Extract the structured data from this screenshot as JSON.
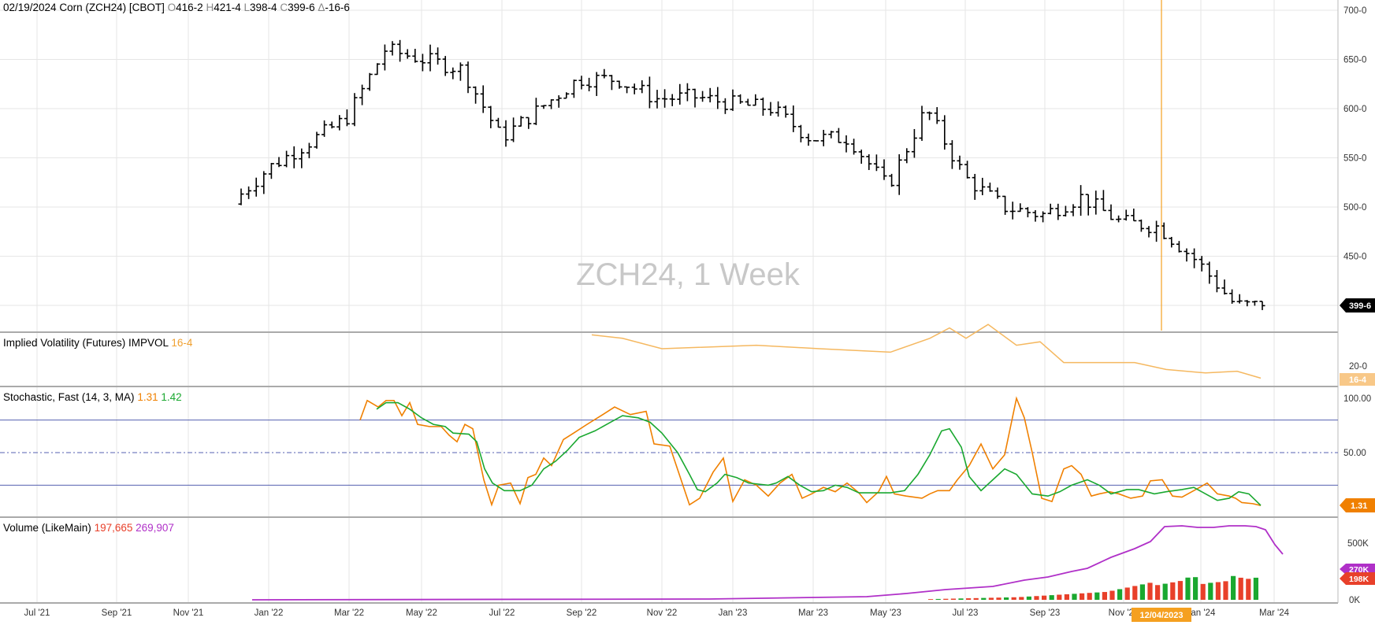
{
  "header": {
    "date": "02/19/2024",
    "symbol": "Corn (ZCH24) [CBOT]",
    "open_label": "O",
    "open": "416-2",
    "high_label": "H",
    "high": "421-4",
    "low_label": "L",
    "low": "398-4",
    "close_label": "C",
    "close": "399-6",
    "change_label": "Δ",
    "change": "-16-6"
  },
  "watermark": "ZCH24, 1 Week",
  "panes": {
    "price": {
      "y_ticks": [
        "700-0",
        "650-0",
        "600-0",
        "550-0",
        "500-0",
        "450-0"
      ],
      "last_price_badge": "399-6"
    },
    "impvol": {
      "title": "Implied Volatility (Futures) IMPVOL",
      "value": "16-4",
      "y_tick": "20-0",
      "badge": "16-4"
    },
    "stoch": {
      "title": "Stochastic, Fast  (14, 3, MA)",
      "k_value": "1.31",
      "d_value": "1.42",
      "y_ticks": [
        "100.00",
        "50.00"
      ],
      "badge": "1.31"
    },
    "volume": {
      "title": "Volume  (LikeMain)",
      "vol_value": "197,665",
      "oi_value": "269,907",
      "y_ticks": [
        "500K",
        "0K"
      ],
      "oi_badge": "270K",
      "vol_badge": "198K"
    }
  },
  "x_axis": {
    "labels": [
      "Jul '21",
      "Sep '21",
      "Nov '21",
      "Jan '22",
      "Mar '22",
      "May '22",
      "Jul '22",
      "Sep '22",
      "Nov '22",
      "Jan '23",
      "Mar '23",
      "May '23",
      "Jul '23",
      "Sep '23",
      "Nov '23",
      "Jan '24",
      "Mar '24"
    ],
    "cursor_date": "12/04/2023"
  },
  "colors": {
    "price_bar": "#000000",
    "impvol_line": "#f5b860",
    "stoch_k": "#f08000",
    "stoch_d": "#1aa830",
    "vol_up": "#1aa830",
    "vol_down": "#e8402a",
    "open_interest": "#b030c8",
    "cursor": "#f5a020",
    "grid": "#e6e6e6"
  },
  "chart_data": {
    "type": "ohlc",
    "interval": "1 Week",
    "close_series_approx": [
      {
        "x": "Dec '21",
        "y": 503
      },
      {
        "x": "Jan '22",
        "y": 540
      },
      {
        "x": "Feb '22",
        "y": 565
      },
      {
        "x": "Mar '22",
        "y": 590
      },
      {
        "x": "Apr '22",
        "y": 660
      },
      {
        "x": "May '22",
        "y": 650
      },
      {
        "x": "Jun '22",
        "y": 640
      },
      {
        "x": "Jul '22",
        "y": 570
      },
      {
        "x": "Aug '22",
        "y": 600
      },
      {
        "x": "Sep '22",
        "y": 630
      },
      {
        "x": "Oct '22",
        "y": 630
      },
      {
        "x": "Nov '22",
        "y": 610
      },
      {
        "x": "Dec '22",
        "y": 612
      },
      {
        "x": "Jan '23",
        "y": 605
      },
      {
        "x": "Feb '23",
        "y": 600
      },
      {
        "x": "Mar '23",
        "y": 570
      },
      {
        "x": "Apr '23",
        "y": 570
      },
      {
        "x": "May '23",
        "y": 520
      },
      {
        "x": "Jun '23",
        "y": 600
      },
      {
        "x": "Jul '23",
        "y": 530
      },
      {
        "x": "Aug '23",
        "y": 500
      },
      {
        "x": "Sep '23",
        "y": 492
      },
      {
        "x": "Oct '23",
        "y": 510
      },
      {
        "x": "Nov '23",
        "y": 485
      },
      {
        "x": "Dec '23",
        "y": 480
      },
      {
        "x": "Jan '24",
        "y": 445
      },
      {
        "x": "Feb '24",
        "y": 400
      }
    ],
    "price_ylim": [
      370,
      710
    ]
  }
}
